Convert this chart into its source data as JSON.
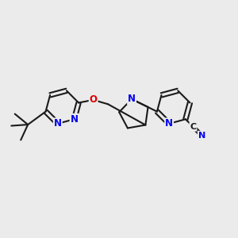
{
  "bg_color": "#ebebeb",
  "bond_color": "#1a1a1a",
  "atom_colors": {
    "N": "#0000ee",
    "O": "#dd0000",
    "C": "#1a1a1a"
  },
  "bond_width": 1.5,
  "font_size_atoms": 8.5,
  "xlim": [
    0,
    10
  ],
  "ylim": [
    0,
    10
  ]
}
